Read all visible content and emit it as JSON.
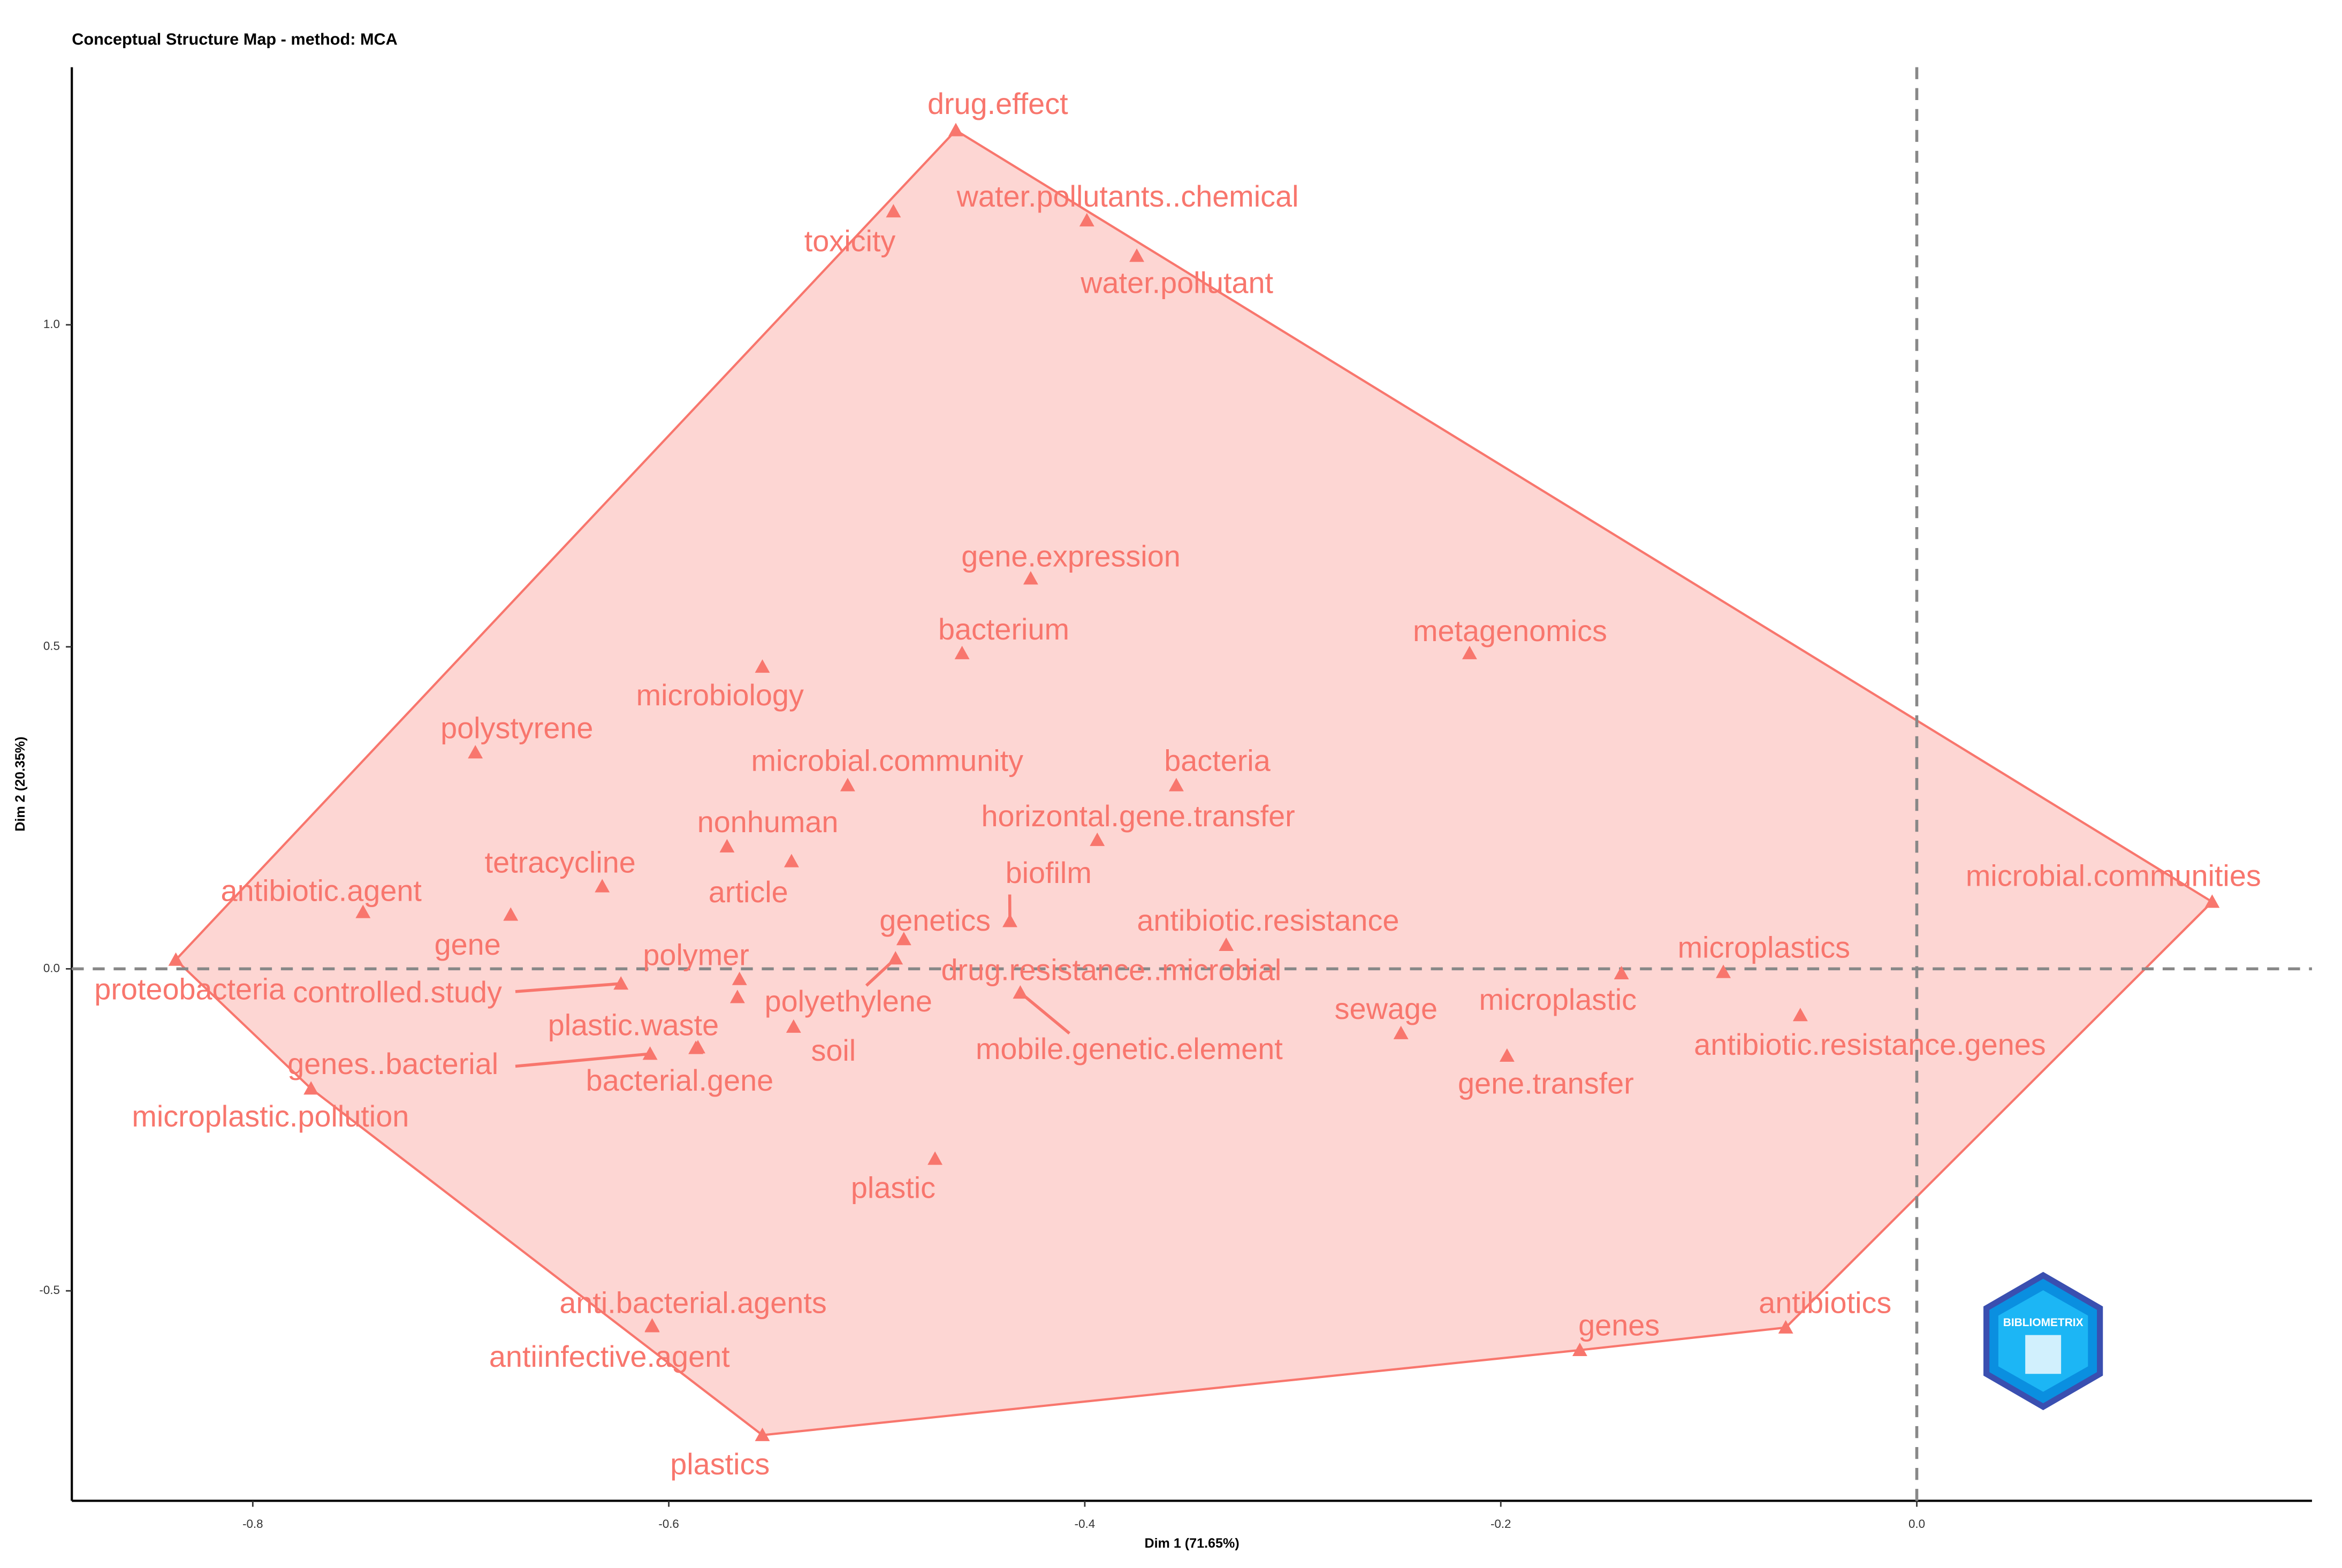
{
  "chart_data": {
    "type": "scatter",
    "title": "Conceptual Structure Map - method: MCA",
    "xlabel": "Dim 1 (71.65%)",
    "ylabel": "Dim 2 (20.35%)",
    "watermark": "BIBLIOMETRIX",
    "color": "#f8766d",
    "xlim": [
      -0.887,
      0.19
    ],
    "ylim": [
      -0.826,
      1.4
    ],
    "xticks": [
      -0.8,
      -0.6,
      -0.4,
      -0.2,
      {
        "value": 0,
        "label": "0.0"
      }
    ],
    "yticks": [
      -0.5,
      {
        "value": 0,
        "label": "0.0"
      },
      0.5,
      {
        "value": 1,
        "label": "1.0"
      }
    ],
    "reference_lines": {
      "x": 0,
      "y": 0
    },
    "labels": [
      "drug.effect",
      "toxicity",
      "water.pollutants..chemical",
      "water.pollutant",
      "gene.expression",
      "bacterium",
      "metagenomics",
      "microbiology",
      "polystyrene",
      "microbial.community",
      "bacteria",
      "nonhuman",
      "horizontal.gene.transfer",
      "article",
      "tetracycline",
      "antibiotic.agent",
      "gene",
      "genetics",
      "biofilm",
      "microbial.communities",
      "antibiotic.resistance",
      "proteobacteria",
      "drug.resistance..microbial",
      "polymer",
      "polyethylene",
      "controlled.study",
      "soil",
      "plastic.waste",
      "genes..bacterial",
      "bacterial.gene",
      "mobile.genetic.element",
      "microplastics",
      "antibiotic.resistance.genes",
      "microplastic",
      "sewage",
      "gene.transfer",
      "microplastic.pollution",
      "plastic",
      "anti.bacterial.agents",
      "antiinfective.agent",
      "genes",
      "antibiotics",
      "plastics"
    ],
    "x": [
      -0.462,
      -0.492,
      -0.399,
      -0.375,
      -0.426,
      -0.459,
      -0.215,
      -0.555,
      -0.693,
      -0.514,
      -0.356,
      -0.572,
      -0.394,
      -0.541,
      -0.632,
      -0.747,
      -0.676,
      -0.487,
      -0.436,
      0.142,
      -0.332,
      -0.837,
      -0.491,
      -0.566,
      -0.567,
      -0.623,
      -0.54,
      -0.587,
      -0.609,
      -0.586,
      -0.431,
      -0.093,
      -0.056,
      -0.142,
      -0.248,
      -0.197,
      -0.772,
      -0.472,
      -0.608,
      -0.608,
      -0.162,
      -0.063,
      -0.555
    ],
    "y": [
      1.302,
      1.176,
      1.162,
      1.107,
      0.606,
      0.49,
      0.49,
      0.469,
      0.336,
      0.285,
      0.285,
      0.19,
      0.2,
      0.167,
      0.128,
      0.088,
      0.084,
      0.046,
      0.074,
      0.104,
      0.037,
      0.014,
      0.016,
      -0.016,
      -0.044,
      -0.023,
      -0.09,
      -0.123,
      -0.132,
      -0.122,
      -0.037,
      -0.005,
      -0.072,
      -0.007,
      -0.1,
      -0.135,
      -0.186,
      -0.295,
      -0.555,
      -0.554,
      -0.592,
      -0.557,
      -0.724
    ]
  }
}
